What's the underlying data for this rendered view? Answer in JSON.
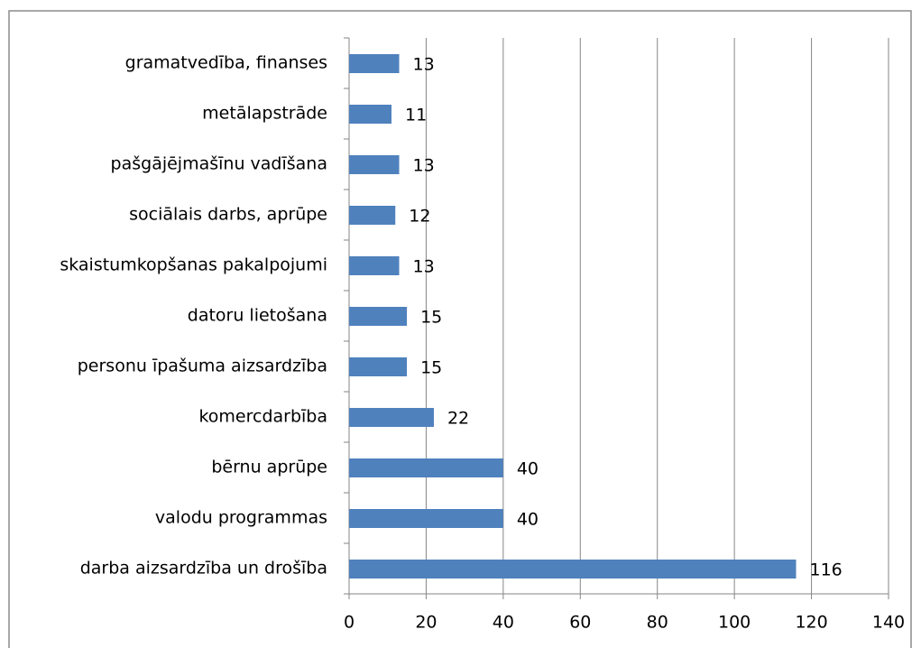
{
  "chart_data": {
    "type": "barh",
    "categories": [
      "gramatvedība, finanses",
      "metālapstrāde",
      "pašgājējmašīnu vadīšana",
      "sociālais darbs, aprūpe",
      "skaistumkopšanas pakalpojumi",
      "datoru lietošana",
      "personu īpašuma aizsardzība",
      "komercdarbība",
      "bērnu aprūpe",
      "valodu programmas",
      "darba aizsardzība un drošība"
    ],
    "values": [
      13,
      11,
      13,
      12,
      13,
      15,
      15,
      22,
      40,
      40,
      116
    ],
    "color": "#4f81bd",
    "xlim": [
      0,
      140
    ],
    "xticks": [
      0,
      20,
      40,
      60,
      80,
      100,
      120,
      140
    ],
    "grid": true
  }
}
